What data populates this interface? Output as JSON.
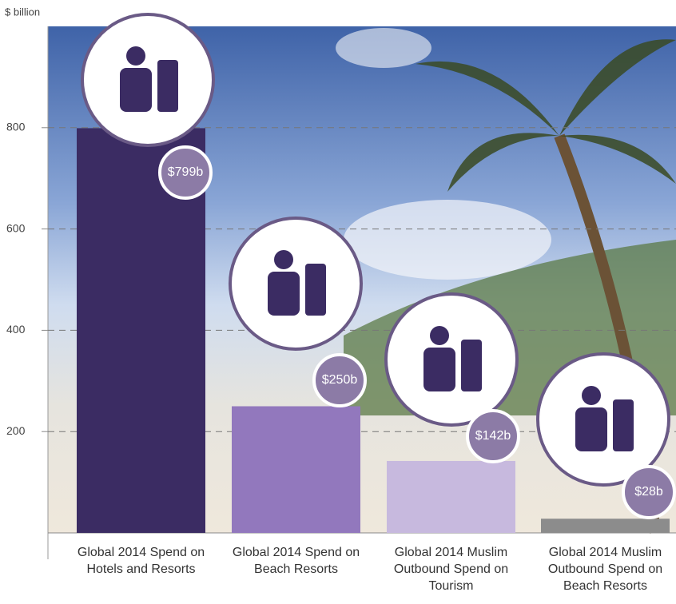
{
  "chart_data": {
    "type": "bar",
    "y_label": "$ billion",
    "categories": [
      "Global 2014 Spend on Hotels and Resorts",
      "Global 2014 Spend on Beach Resorts",
      "Global 2014 Muslim Outbound Spend on Tourism",
      "Global 2014 Muslim Outbound Spend on Beach Resorts"
    ],
    "values": [
      799,
      250,
      142,
      28
    ],
    "value_labels": [
      "$799b",
      "$250b",
      "$142b",
      "$28b"
    ],
    "colors": [
      "#3b2c63",
      "#9278bd",
      "#c7b9de",
      "#8c8c8c"
    ],
    "ylim": [
      0,
      1000
    ],
    "yticks": [
      200,
      400,
      600,
      800
    ],
    "grid": true
  }
}
